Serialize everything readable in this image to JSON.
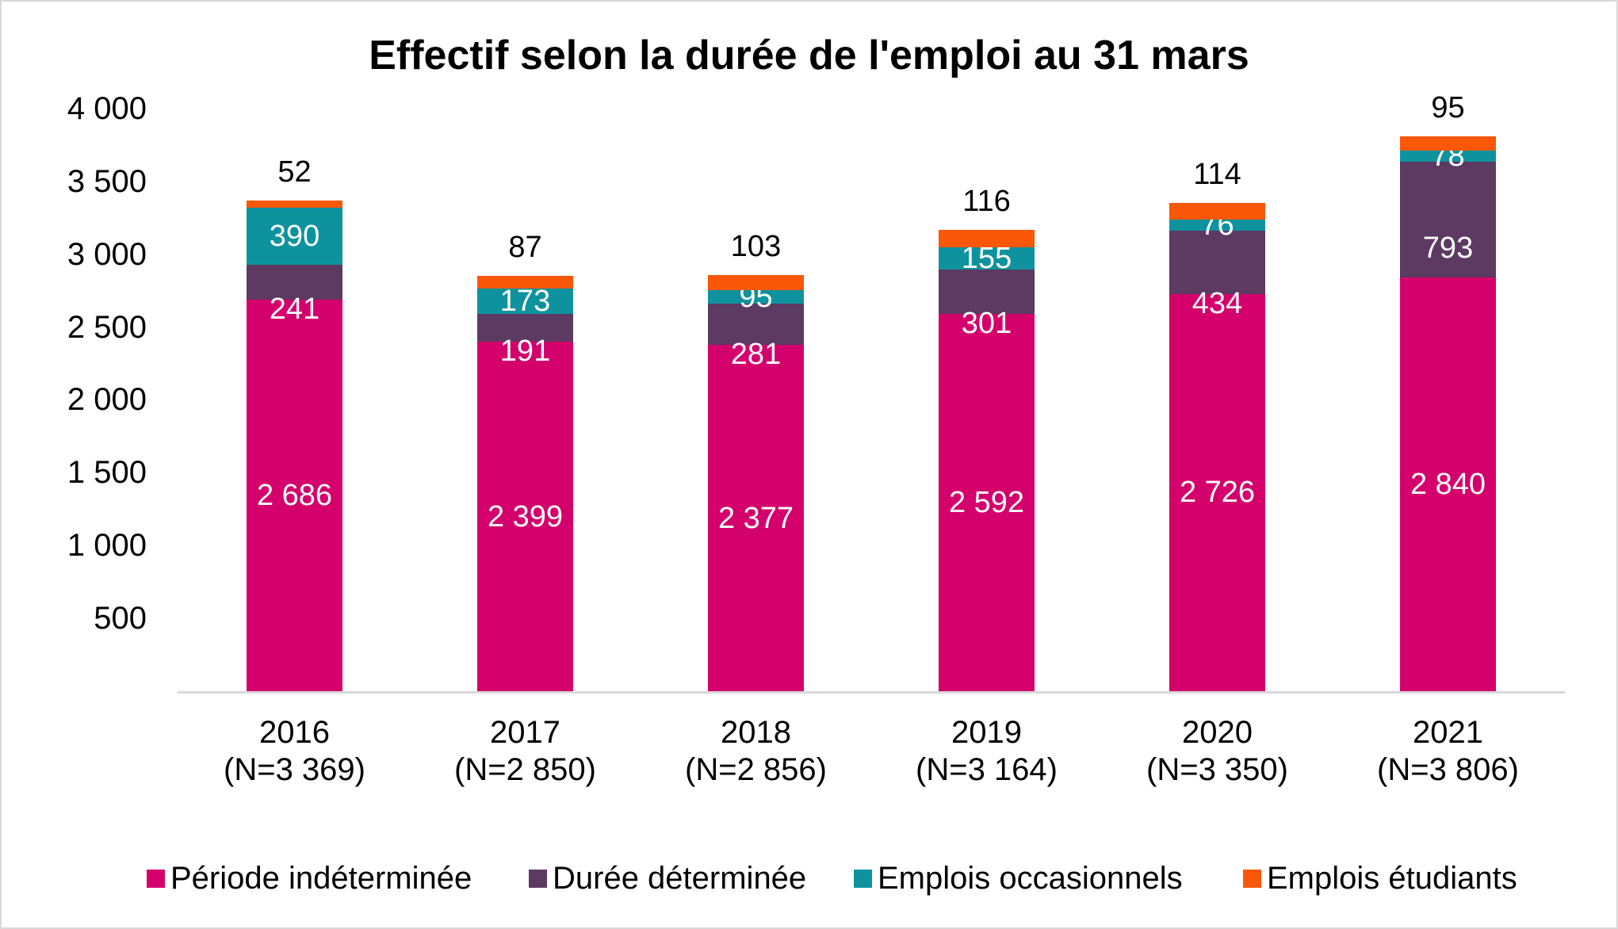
{
  "title": "Effectif selon la durée de l'emploi au 31 mars",
  "chart_data": {
    "type": "bar",
    "stacked": true,
    "title": "Effectif selon la durée de l'emploi au 31 mars",
    "categories": [
      "2016",
      "2017",
      "2018",
      "2019",
      "2020",
      "2021"
    ],
    "category_sublabels": [
      "(N=3 369)",
      "(N=2 850)",
      "(N=2 856)",
      "(N=3 164)",
      "(N=3 350)",
      "(N=3 806)"
    ],
    "series": [
      {
        "name": "Période indéterminée",
        "color": "#d4006c",
        "label_color": "#ffffff",
        "label_position": "center",
        "values": [
          2686,
          2399,
          2377,
          2592,
          2726,
          2840
        ]
      },
      {
        "name": "Durée déterminée",
        "color": "#5c3a61",
        "label_color": "#ffffff",
        "label_position": "below-segment",
        "values": [
          241,
          191,
          281,
          301,
          434,
          793
        ]
      },
      {
        "name": "Emplois occasionnels",
        "color": "#0e939e",
        "label_color": "#ffffff",
        "label_position": "center",
        "values": [
          390,
          173,
          95,
          155,
          76,
          78
        ]
      },
      {
        "name": "Emplois étudiants",
        "color": "#fa5708",
        "label_color": "#000000",
        "label_position": "above-bar",
        "values": [
          52,
          87,
          103,
          116,
          114,
          95
        ]
      }
    ],
    "totals": [
      3369,
      2850,
      2856,
      3164,
      3350,
      3806
    ],
    "ylim": [
      0,
      4000
    ],
    "ytick_step": 500,
    "grid": false,
    "legend_position": "bottom",
    "axis_line_color": "#d9d9d9",
    "number_format": "fr-space"
  },
  "legend": {
    "items": [
      {
        "label": "Période indéterminée",
        "color": "#d4006c"
      },
      {
        "label": "Durée déterminée",
        "color": "#5c3a61"
      },
      {
        "label": "Emplois occasionnels",
        "color": "#0e939e"
      },
      {
        "label": "Emplois étudiants",
        "color": "#fa5708"
      }
    ]
  }
}
